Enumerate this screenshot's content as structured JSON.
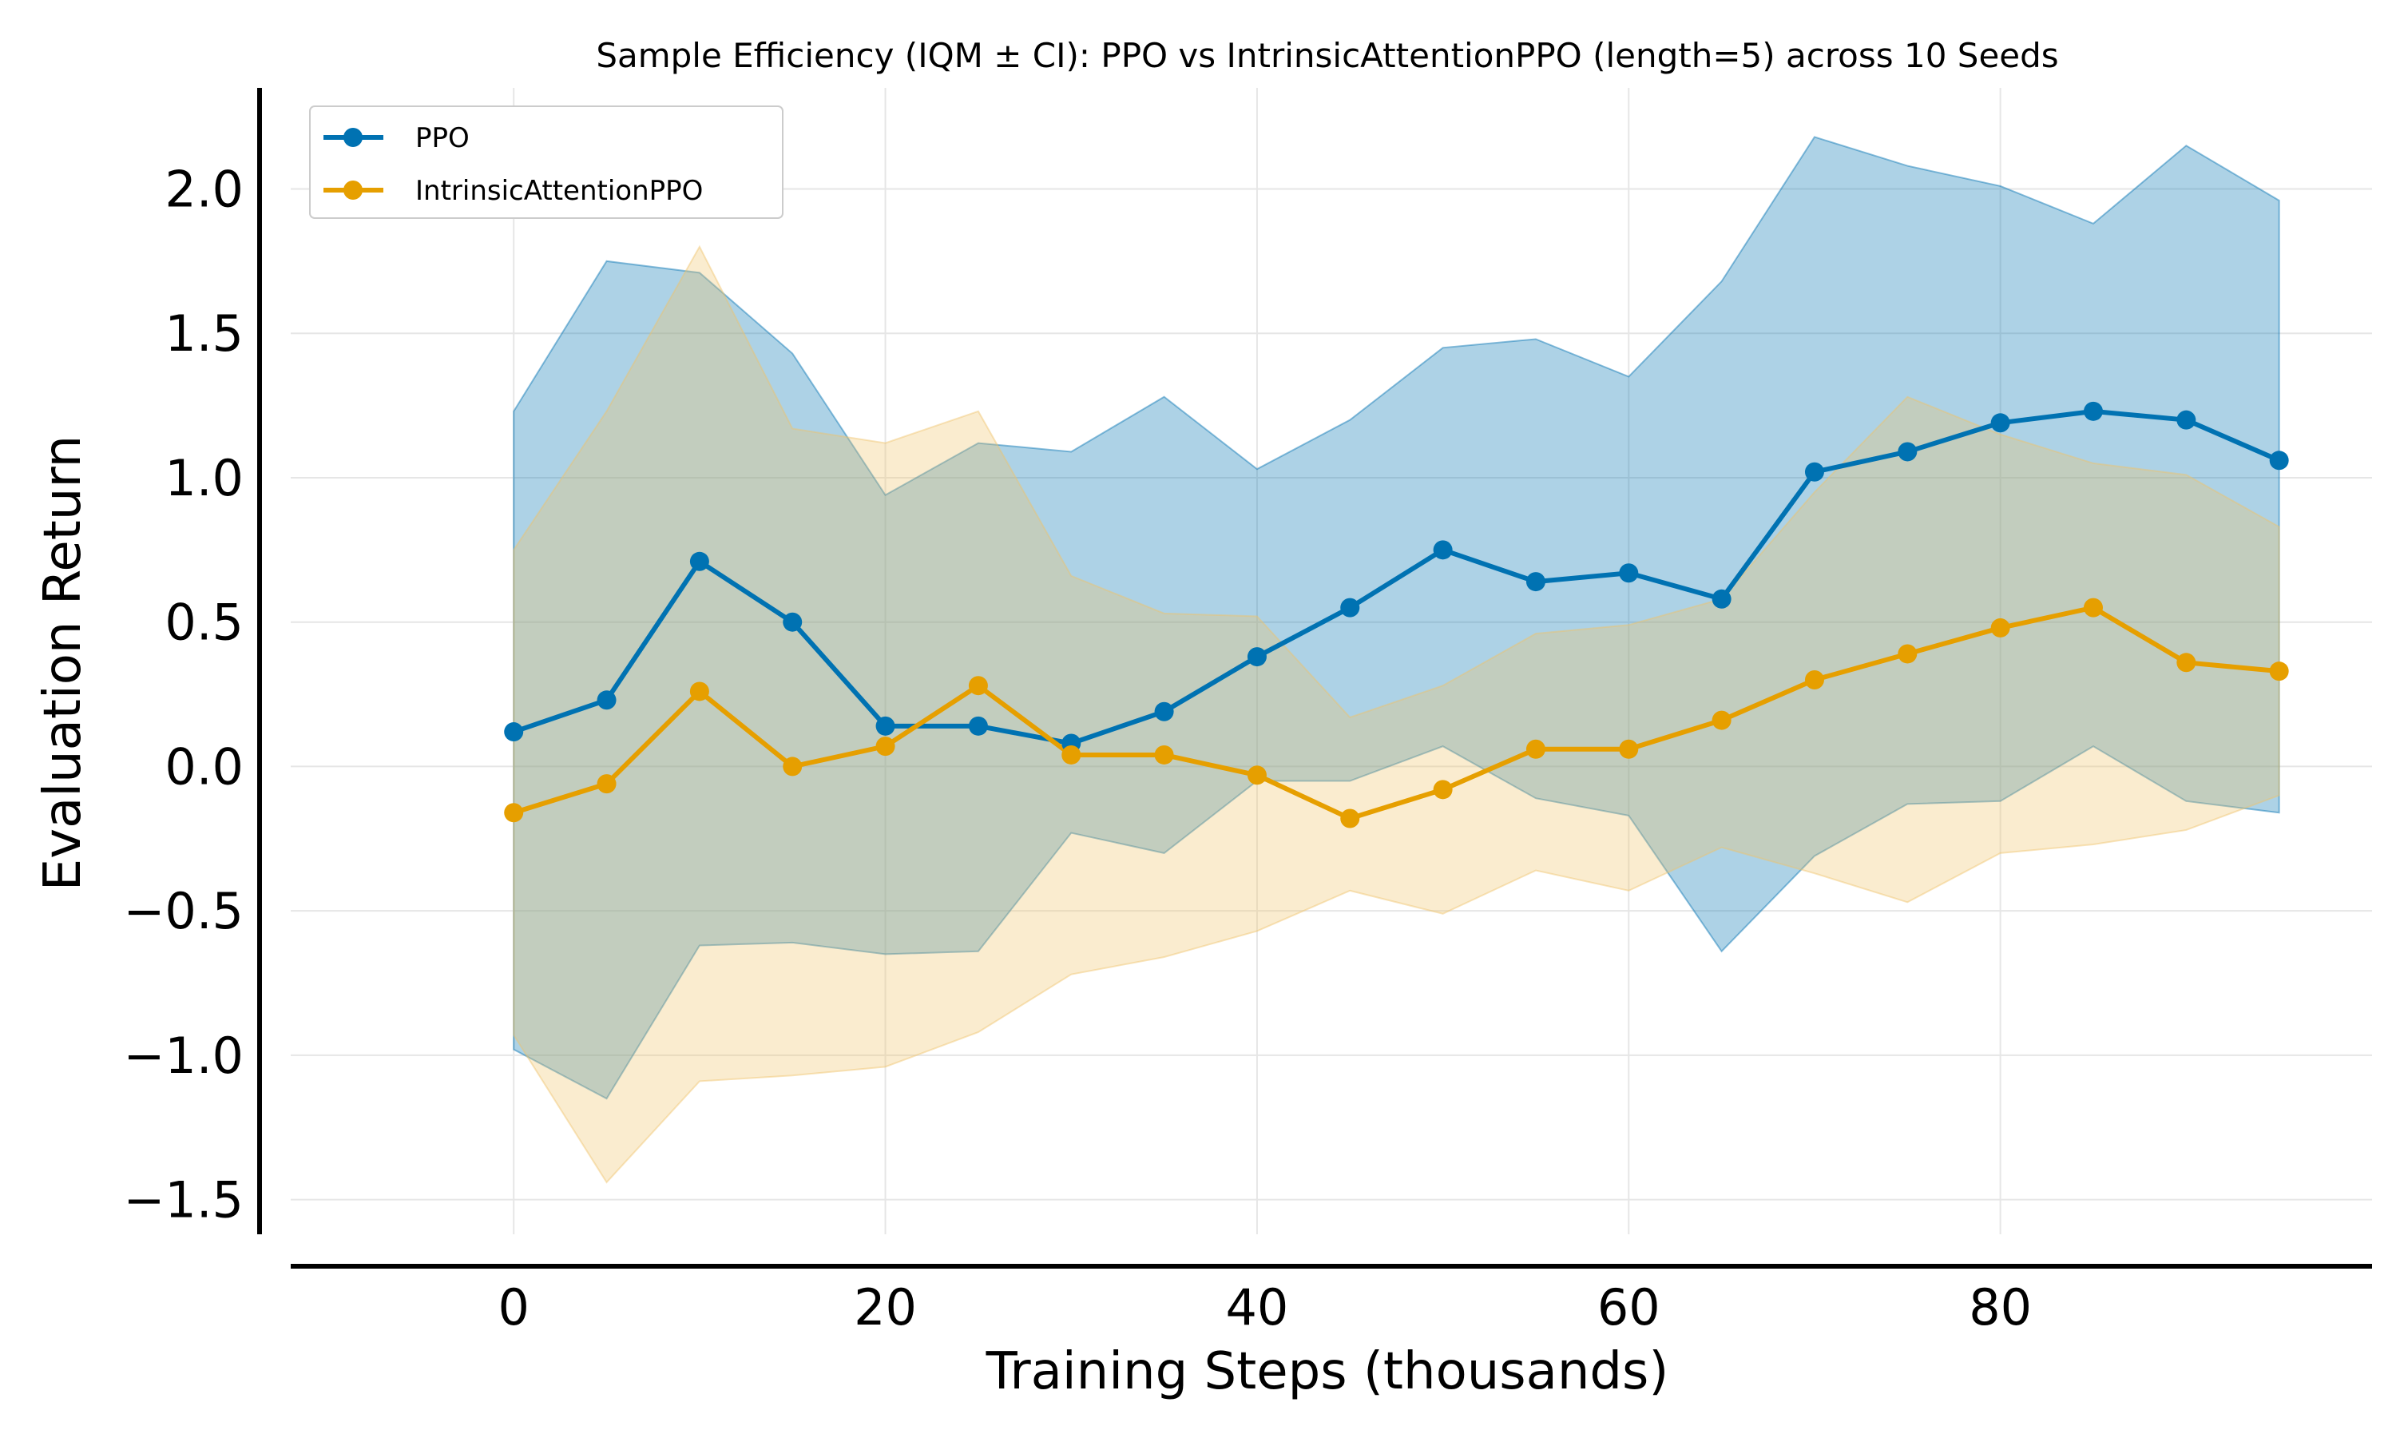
{
  "chart_data": {
    "type": "line",
    "title": "Sample Efficiency (IQM ± CI): PPO vs IntrinsicAttentionPPO (length=5) across 10 Seeds",
    "xlabel": "Training Steps (thousands)",
    "ylabel": "Evaluation Return",
    "xlim": [
      -12,
      100
    ],
    "ylim": [
      -1.62,
      2.35
    ],
    "xticks": [
      0,
      20,
      40,
      60,
      80
    ],
    "xtick_labels": [
      "0",
      "20",
      "40",
      "60",
      "80"
    ],
    "yticks": [
      -1.5,
      -1.0,
      -0.5,
      0.0,
      0.5,
      1.0,
      1.5,
      2.0
    ],
    "ytick_labels": [
      "−1.5",
      "−1.0",
      "−0.5",
      "0.0",
      "0.5",
      "1.0",
      "1.5",
      "2.0"
    ],
    "grid": true,
    "legend_position": "top-left",
    "x": [
      0,
      5,
      10,
      15,
      20,
      25,
      30,
      35,
      40,
      45,
      50,
      55,
      60,
      65,
      70,
      75,
      80,
      85,
      90,
      95
    ],
    "series": [
      {
        "name": "PPO",
        "color": "#0072b2",
        "band_color": "#0072b2",
        "values": [
          0.12,
          0.23,
          0.71,
          0.5,
          0.14,
          0.14,
          0.08,
          0.19,
          0.38,
          0.55,
          0.75,
          0.64,
          0.67,
          0.58,
          1.02,
          1.09,
          1.19,
          1.23,
          1.2,
          1.06
        ],
        "upper": [
          1.23,
          1.75,
          1.71,
          1.43,
          0.94,
          1.12,
          1.09,
          1.28,
          1.03,
          1.2,
          1.45,
          1.48,
          1.35,
          1.68,
          2.18,
          2.08,
          2.01,
          1.88,
          2.15,
          1.96
        ],
        "lower": [
          -0.98,
          -1.15,
          -0.62,
          -0.61,
          -0.65,
          -0.64,
          -0.23,
          -0.3,
          -0.05,
          -0.05,
          0.07,
          -0.11,
          -0.17,
          -0.64,
          -0.31,
          -0.13,
          -0.12,
          0.07,
          -0.12,
          -0.16
        ]
      },
      {
        "name": "IntrinsicAttentionPPO",
        "color": "#e69f00",
        "band_color": "#f0c36a",
        "values": [
          -0.16,
          -0.06,
          0.26,
          0.0,
          0.07,
          0.28,
          0.04,
          0.04,
          -0.03,
          -0.18,
          -0.08,
          0.06,
          0.06,
          0.16,
          0.3,
          0.39,
          0.48,
          0.55,
          0.36,
          0.33
        ],
        "upper": [
          0.75,
          1.23,
          1.8,
          1.17,
          1.12,
          1.23,
          0.66,
          0.53,
          0.52,
          0.17,
          0.28,
          0.46,
          0.49,
          0.58,
          0.95,
          1.28,
          1.15,
          1.05,
          1.01,
          0.83
        ],
        "lower": [
          -0.93,
          -1.44,
          -1.09,
          -1.07,
          -1.04,
          -0.92,
          -0.72,
          -0.66,
          -0.57,
          -0.43,
          -0.51,
          -0.36,
          -0.43,
          -0.28,
          -0.37,
          -0.47,
          -0.3,
          -0.27,
          -0.22,
          -0.1
        ]
      }
    ]
  }
}
